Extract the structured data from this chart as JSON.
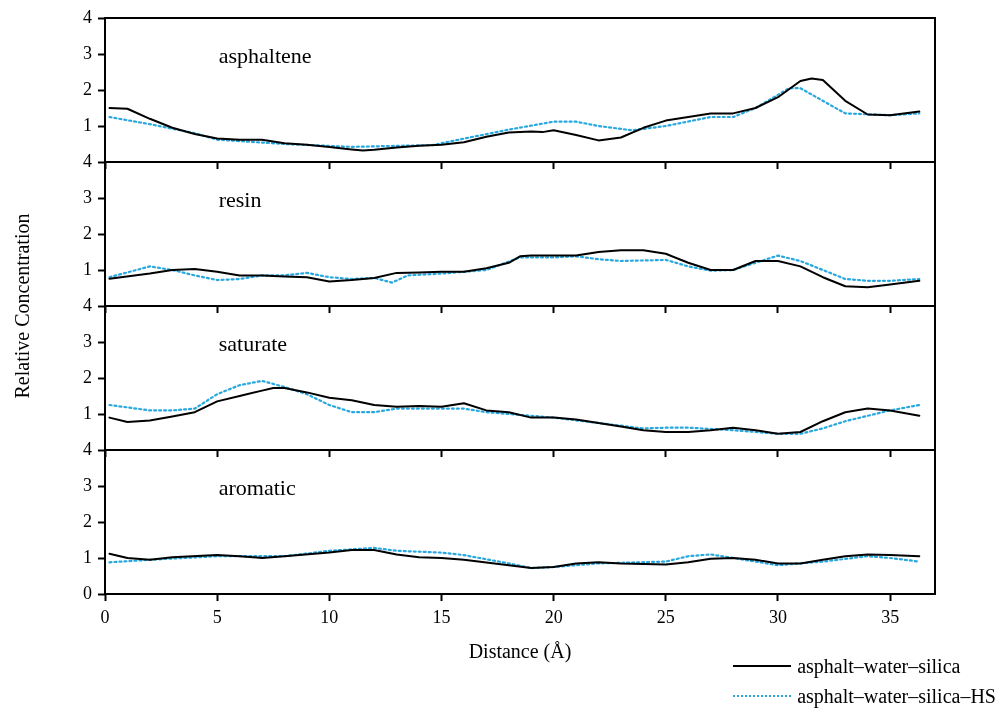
{
  "chart_data": [
    {
      "type": "line",
      "annotations": [
        "asphaltene"
      ],
      "xlim": [
        0,
        37
      ],
      "xticks": [
        {
          "value": 0,
          "label": null
        },
        {
          "value": 5,
          "label": null
        },
        {
          "value": 10,
          "label": null
        },
        {
          "value": 15,
          "label": null
        },
        {
          "value": 20,
          "label": null
        },
        {
          "value": 25,
          "label": null
        },
        {
          "value": 30,
          "label": null
        },
        {
          "value": 35,
          "label": null
        }
      ],
      "ylim": [
        0,
        4
      ],
      "yticks": [
        1,
        2,
        3,
        4
      ],
      "tick_labels": "y",
      "marker": "none",
      "grid": false,
      "legend": false,
      "series": [
        {
          "color": "#000000",
          "line_style": "solid",
          "x": [
            0.2,
            1,
            2,
            3,
            4,
            5,
            6,
            7,
            8,
            9,
            10,
            11,
            11.5,
            12,
            13,
            14,
            15,
            16,
            17,
            18,
            19,
            19.5,
            20,
            21,
            22,
            23,
            24,
            25,
            26,
            27,
            28,
            29,
            30,
            31,
            31.5,
            32,
            33,
            34,
            35,
            36.3
          ],
          "values": [
            1.5,
            1.48,
            1.2,
            0.95,
            0.78,
            0.65,
            0.62,
            0.62,
            0.52,
            0.48,
            0.42,
            0.35,
            0.32,
            0.34,
            0.4,
            0.45,
            0.48,
            0.55,
            0.7,
            0.82,
            0.85,
            0.83,
            0.88,
            0.75,
            0.6,
            0.68,
            0.95,
            1.15,
            1.25,
            1.35,
            1.35,
            1.5,
            1.8,
            2.25,
            2.32,
            2.28,
            1.7,
            1.32,
            1.3,
            1.4
          ]
        },
        {
          "color": "#29a8e0",
          "line_style": "dotted",
          "x": [
            0.2,
            2,
            4,
            5,
            8,
            11,
            14.6,
            16,
            18,
            20,
            21,
            22,
            23.5,
            25,
            27,
            28,
            29,
            30.5,
            31,
            32,
            33,
            35,
            36.3
          ],
          "values": [
            1.25,
            1.05,
            0.8,
            0.62,
            0.5,
            0.42,
            0.47,
            0.65,
            0.9,
            1.12,
            1.12,
            1.0,
            0.88,
            1.0,
            1.25,
            1.25,
            1.5,
            2.05,
            2.05,
            1.7,
            1.35,
            1.3,
            1.35
          ]
        }
      ]
    },
    {
      "type": "line",
      "annotations": [
        "resin"
      ],
      "ylabel": "Relative Concentration",
      "xlim": [
        0,
        37
      ],
      "xticks": [
        {
          "value": 0,
          "label": null
        },
        {
          "value": 5,
          "label": null
        },
        {
          "value": 10,
          "label": null
        },
        {
          "value": 15,
          "label": null
        },
        {
          "value": 20,
          "label": null
        },
        {
          "value": 25,
          "label": null
        },
        {
          "value": 30,
          "label": null
        },
        {
          "value": 35,
          "label": null
        }
      ],
      "ylim": [
        0,
        4
      ],
      "yticks": [
        1,
        2,
        3,
        4
      ],
      "tick_labels": "y",
      "marker": "none",
      "grid": false,
      "legend": false,
      "series": [
        {
          "color": "#000000",
          "line_style": "solid",
          "x": [
            0.2,
            2,
            3,
            4,
            5,
            6,
            7,
            8,
            9,
            10,
            11,
            12,
            13,
            14,
            15,
            16,
            17,
            18,
            18.5,
            19,
            20,
            21,
            22,
            23,
            24,
            25,
            26,
            27,
            28,
            29,
            30,
            31,
            32,
            33,
            34,
            35,
            36.3
          ],
          "values": [
            0.76,
            0.9,
            1.0,
            1.03,
            0.95,
            0.85,
            0.85,
            0.82,
            0.8,
            0.68,
            0.72,
            0.78,
            0.92,
            0.93,
            0.95,
            0.95,
            1.05,
            1.2,
            1.38,
            1.4,
            1.4,
            1.4,
            1.5,
            1.55,
            1.55,
            1.45,
            1.2,
            1.0,
            1.0,
            1.25,
            1.25,
            1.1,
            0.8,
            0.55,
            0.52,
            0.6,
            0.7
          ]
        },
        {
          "color": "#29a8e0",
          "line_style": "dotted",
          "x": [
            0.2,
            2,
            3,
            4,
            5,
            6,
            7,
            8,
            9,
            10,
            11,
            12,
            12.8,
            13.5,
            15,
            17,
            18.5,
            20,
            21,
            22,
            23,
            25,
            26,
            27,
            28,
            29,
            30,
            31,
            32,
            33,
            34,
            35,
            36.3
          ],
          "values": [
            0.8,
            1.1,
            1.0,
            0.85,
            0.72,
            0.75,
            0.85,
            0.85,
            0.92,
            0.8,
            0.75,
            0.78,
            0.65,
            0.85,
            0.9,
            1.0,
            1.35,
            1.35,
            1.38,
            1.3,
            1.25,
            1.28,
            1.1,
            0.98,
            1.0,
            1.2,
            1.4,
            1.25,
            1.0,
            0.75,
            0.7,
            0.7,
            0.75
          ]
        }
      ]
    },
    {
      "type": "line",
      "annotations": [
        "saturate"
      ],
      "xlim": [
        0,
        37
      ],
      "xticks": [
        {
          "value": 0,
          "label": null
        },
        {
          "value": 5,
          "label": null
        },
        {
          "value": 10,
          "label": null
        },
        {
          "value": 15,
          "label": null
        },
        {
          "value": 20,
          "label": null
        },
        {
          "value": 25,
          "label": null
        },
        {
          "value": 30,
          "label": null
        },
        {
          "value": 35,
          "label": null
        }
      ],
      "ylim": [
        0,
        4
      ],
      "yticks": [
        1,
        2,
        3,
        4
      ],
      "tick_labels": "y",
      "marker": "none",
      "grid": false,
      "legend": false,
      "series": [
        {
          "color": "#000000",
          "line_style": "solid",
          "x": [
            0.2,
            1,
            2,
            3,
            4,
            5,
            6,
            7,
            7.5,
            8,
            9,
            10,
            11,
            12,
            13,
            14,
            15,
            16,
            17,
            18,
            19,
            20,
            21,
            22,
            23,
            24,
            25,
            26,
            27,
            28,
            29,
            30,
            31,
            32,
            33,
            34,
            35,
            36.3
          ],
          "values": [
            0.9,
            0.78,
            0.82,
            0.93,
            1.05,
            1.35,
            1.5,
            1.65,
            1.72,
            1.72,
            1.6,
            1.45,
            1.38,
            1.25,
            1.2,
            1.22,
            1.2,
            1.3,
            1.1,
            1.05,
            0.9,
            0.9,
            0.85,
            0.75,
            0.65,
            0.55,
            0.5,
            0.5,
            0.55,
            0.62,
            0.55,
            0.45,
            0.5,
            0.8,
            1.05,
            1.15,
            1.1,
            0.95
          ]
        },
        {
          "color": "#29a8e0",
          "line_style": "dotted",
          "x": [
            0.2,
            2,
            3,
            4,
            5,
            6,
            7,
            8,
            9,
            10,
            11,
            12,
            13,
            15,
            16,
            17,
            19,
            20,
            22,
            24,
            25,
            26,
            28,
            29,
            30,
            31,
            32,
            33,
            35,
            36.3
          ],
          "values": [
            1.25,
            1.1,
            1.1,
            1.15,
            1.55,
            1.8,
            1.92,
            1.75,
            1.55,
            1.25,
            1.05,
            1.05,
            1.15,
            1.15,
            1.15,
            1.05,
            0.95,
            0.9,
            0.75,
            0.6,
            0.62,
            0.62,
            0.55,
            0.5,
            0.45,
            0.45,
            0.6,
            0.8,
            1.1,
            1.25
          ]
        }
      ]
    },
    {
      "type": "line",
      "annotations": [
        "aromatic"
      ],
      "xlabel": "Distance (Å)",
      "xlim": [
        0,
        37
      ],
      "xticks": [
        0,
        5,
        10,
        15,
        20,
        25,
        30,
        35
      ],
      "ylim": [
        0,
        4
      ],
      "yticks": [
        0,
        1,
        2,
        3,
        4
      ],
      "marker": "none",
      "grid": false,
      "legend": "bottom right",
      "series": [
        {
          "name": "asphalt–water–silica",
          "color": "#000000",
          "line_style": "solid",
          "x": [
            0.2,
            1,
            2,
            3,
            5,
            6,
            7,
            8,
            10,
            11,
            12,
            13,
            14,
            15,
            16,
            18,
            19,
            20,
            21,
            22,
            23,
            25,
            26,
            27,
            28,
            29,
            30,
            31,
            32,
            33,
            34,
            35,
            36.3
          ],
          "values": [
            1.12,
            1.0,
            0.95,
            1.02,
            1.08,
            1.05,
            1.0,
            1.05,
            1.15,
            1.22,
            1.22,
            1.1,
            1.02,
            1.0,
            0.95,
            0.8,
            0.72,
            0.75,
            0.85,
            0.88,
            0.85,
            0.82,
            0.88,
            0.98,
            1.0,
            0.95,
            0.85,
            0.85,
            0.95,
            1.05,
            1.1,
            1.08,
            1.05
          ]
        },
        {
          "name": "asphalt–water–silica–HS",
          "color": "#29a8e0",
          "line_style": "dotted",
          "x": [
            0.2,
            2,
            5,
            8,
            10,
            12,
            13,
            15,
            16,
            18,
            19,
            20,
            22,
            25,
            26,
            27,
            28,
            29,
            30,
            32,
            34,
            35,
            36.3
          ],
          "values": [
            0.88,
            0.95,
            1.05,
            1.05,
            1.2,
            1.28,
            1.2,
            1.15,
            1.08,
            0.85,
            0.72,
            0.75,
            0.85,
            0.9,
            1.05,
            1.1,
            1.0,
            0.9,
            0.8,
            0.9,
            1.05,
            1.0,
            0.9
          ]
        }
      ]
    }
  ]
}
